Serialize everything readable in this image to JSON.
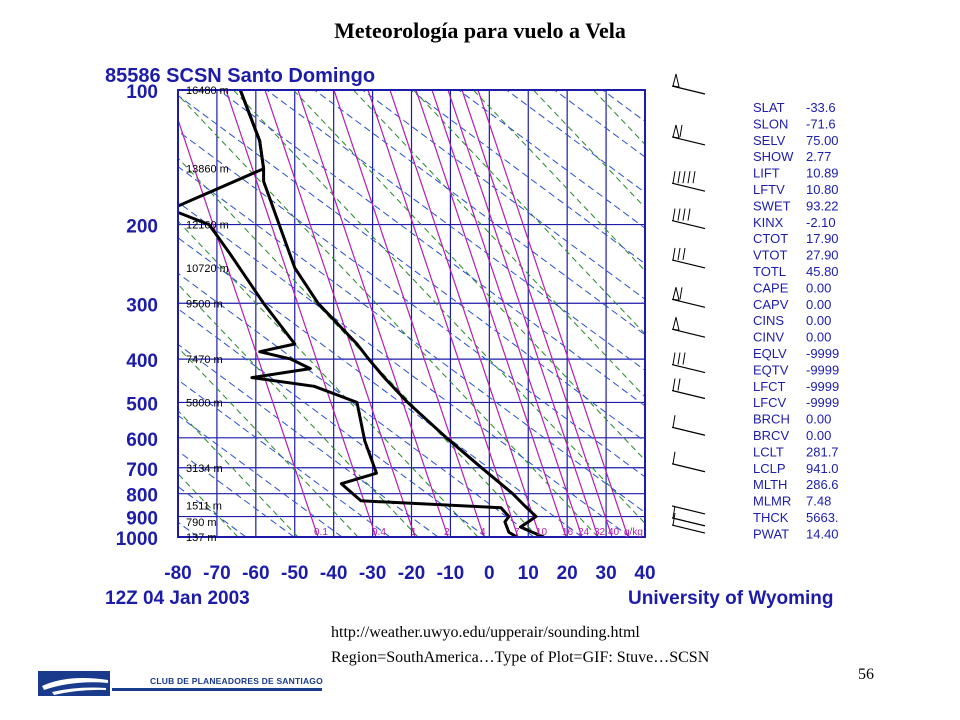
{
  "slide_title": "Meteorología para vuelo a Vela",
  "chart_data": {
    "type": "line",
    "title": "85586 SCSN Santo Domingo",
    "subtitle_left": "12Z 04 Jan 2003",
    "subtitle_right": "University of Wyoming",
    "ylabel": "",
    "xlabel": "",
    "y_scale": "log",
    "ylim": [
      1000,
      100
    ],
    "xlim": [
      -80,
      40
    ],
    "pressure_ticks": [
      "100",
      "200",
      "300",
      "400",
      "500",
      "600",
      "700",
      "800",
      "900",
      "1000"
    ],
    "pressure_values": [
      100,
      200,
      300,
      400,
      500,
      600,
      700,
      800,
      900,
      1000
    ],
    "temperature_ticks": [
      "-80",
      "-70",
      "-60",
      "-50",
      "-40",
      "-30",
      "-20",
      "-10",
      "0",
      "10",
      "20",
      "30",
      "40"
    ],
    "temperature_values": [
      -80,
      -70,
      -60,
      -50,
      -40,
      -30,
      -20,
      -10,
      0,
      10,
      20,
      30,
      40
    ],
    "height_labels": [
      {
        "p": 100,
        "text": "16480 m"
      },
      {
        "p": 150,
        "text": "13860 m"
      },
      {
        "p": 200,
        "text": "12160 m"
      },
      {
        "p": 250,
        "text": "10720 m"
      },
      {
        "p": 300,
        "text": "9500 m"
      },
      {
        "p": 400,
        "text": "7470 m"
      },
      {
        "p": 500,
        "text": "5800 m"
      },
      {
        "p": 700,
        "text": "3134 m"
      },
      {
        "p": 850,
        "text": "1511 m"
      },
      {
        "p": 925,
        "text": "790 m"
      },
      {
        "p": 1000,
        "text": "137 m"
      }
    ],
    "mixing_ratio_labels": [
      "0.1",
      "0.4",
      "1",
      "2",
      "4",
      "7",
      "10",
      "16",
      "24",
      "32",
      "40",
      "g/kg"
    ],
    "series": [
      {
        "kind": "temperature",
        "points": [
          [
            100,
            -64
          ],
          [
            130,
            -59
          ],
          [
            150,
            -58
          ],
          [
            160,
            -58
          ],
          [
            200,
            -54
          ],
          [
            250,
            -50
          ],
          [
            300,
            -44
          ],
          [
            370,
            -34
          ],
          [
            400,
            -31
          ],
          [
            440,
            -27
          ],
          [
            500,
            -21
          ],
          [
            600,
            -11
          ],
          [
            700,
            -2
          ],
          [
            800,
            6
          ],
          [
            850,
            9
          ],
          [
            900,
            12
          ],
          [
            925,
            10
          ],
          [
            950,
            8
          ],
          [
            975,
            11
          ],
          [
            1000,
            14
          ]
        ]
      },
      {
        "kind": "dewpoint",
        "points": [
          [
            100,
            -64
          ],
          [
            130,
            -59
          ],
          [
            150,
            -58
          ],
          [
            185,
            -82
          ],
          [
            200,
            -72
          ],
          [
            230,
            -67
          ],
          [
            300,
            -58
          ],
          [
            370,
            -50
          ],
          [
            385,
            -59
          ],
          [
            400,
            -51
          ],
          [
            420,
            -46
          ],
          [
            440,
            -61
          ],
          [
            460,
            -45
          ],
          [
            500,
            -34
          ],
          [
            610,
            -32
          ],
          [
            720,
            -29
          ],
          [
            760,
            -38
          ],
          [
            830,
            -33
          ],
          [
            860,
            3
          ],
          [
            900,
            5
          ],
          [
            925,
            4
          ],
          [
            975,
            5
          ],
          [
            1000,
            7
          ]
        ]
      }
    ],
    "indices": [
      {
        "name": "SLAT",
        "value": "-33.6"
      },
      {
        "name": "SLON",
        "value": "-71.6"
      },
      {
        "name": "SELV",
        "value": "75.00"
      },
      {
        "name": "SHOW",
        "value": "2.77"
      },
      {
        "name": "LIFT",
        "value": "10.89"
      },
      {
        "name": "LFTV",
        "value": "10.80"
      },
      {
        "name": "SWET",
        "value": "93.22"
      },
      {
        "name": "KINX",
        "value": "-2.10"
      },
      {
        "name": "CTOT",
        "value": "17.90"
      },
      {
        "name": "VTOT",
        "value": "27.90"
      },
      {
        "name": "TOTL",
        "value": "45.80"
      },
      {
        "name": "CAPE",
        "value": "0.00"
      },
      {
        "name": "CAPV",
        "value": "0.00"
      },
      {
        "name": "CINS",
        "value": "0.00"
      },
      {
        "name": "CINV",
        "value": "0.00"
      },
      {
        "name": "EQLV",
        "value": "-9999"
      },
      {
        "name": "EQTV",
        "value": "-9999"
      },
      {
        "name": "LFCT",
        "value": "-9999"
      },
      {
        "name": "LFCV",
        "value": "-9999"
      },
      {
        "name": "BRCH",
        "value": "0.00"
      },
      {
        "name": "BRCV",
        "value": "0.00"
      },
      {
        "name": "LCLT",
        "value": "281.7"
      },
      {
        "name": "LCLP",
        "value": "941.0"
      },
      {
        "name": "MLTH",
        "value": "286.6"
      },
      {
        "name": "MLMR",
        "value": "7.48"
      },
      {
        "name": "THCK",
        "value": "5663."
      },
      {
        "name": "PWAT",
        "value": "14.40"
      }
    ],
    "wind_barbs": [
      {
        "p": 100,
        "flags": 1,
        "full": 0
      },
      {
        "p": 130,
        "flags": 1,
        "full": 1
      },
      {
        "p": 165,
        "flags": 0,
        "full": 5
      },
      {
        "p": 200,
        "flags": 0,
        "full": 4
      },
      {
        "p": 245,
        "flags": 0,
        "full": 3
      },
      {
        "p": 300,
        "flags": 1,
        "full": 1
      },
      {
        "p": 350,
        "flags": 1,
        "full": 0
      },
      {
        "p": 420,
        "flags": 0,
        "full": 3
      },
      {
        "p": 480,
        "flags": 0,
        "full": 2
      },
      {
        "p": 580,
        "flags": 0,
        "full": 1
      },
      {
        "p": 700,
        "flags": 0,
        "full": 1
      },
      {
        "p": 870,
        "flags": 0,
        "full": 0
      },
      {
        "p": 925,
        "flags": 0,
        "full": 1
      },
      {
        "p": 960,
        "flags": 0,
        "full": 1
      }
    ],
    "grid": true,
    "colors": {
      "frame": "#1c1ca8",
      "isotherm": "#1c1ca8",
      "dry_adiabat": "#2e8b2e",
      "moist_adiabat": "#2a50c8",
      "mixing_ratio": "#b020b0",
      "sounding": "#000000",
      "labels": "#1c1ca8"
    }
  },
  "footer": {
    "url": "http://weather.uwyo.edu/upperair/sounding.html",
    "region_line": "Region=SouthAmerica…Type of Plot=GIF: Stuve…SCSN",
    "page_number": "56",
    "logo_text": "CLUB DE PLANEADORES DE SANTIAGO"
  }
}
